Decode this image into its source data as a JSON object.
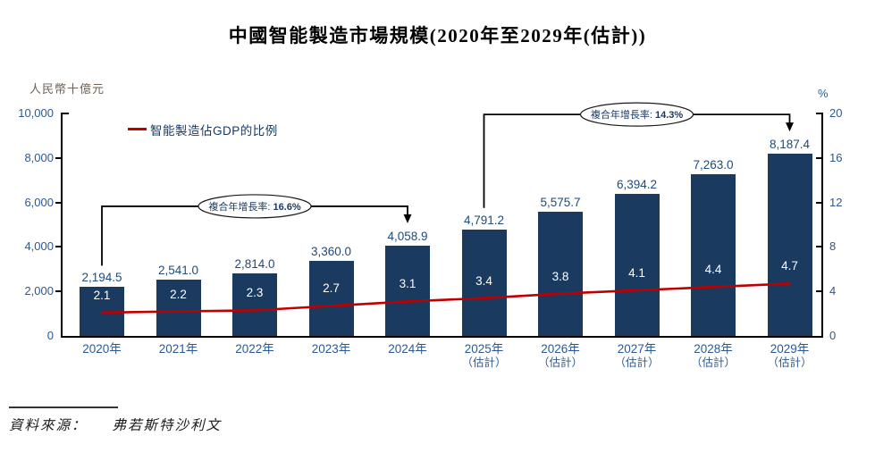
{
  "title": "中國智能製造市場規模(2020年至2029年(估計))",
  "left_axis": {
    "unit": "人民幣十億元",
    "ticks": [
      "10,000",
      "8,000",
      "6,000",
      "4,000",
      "2,000",
      "0"
    ]
  },
  "right_axis": {
    "unit": "%",
    "ticks": [
      "20",
      "16",
      "12",
      "8",
      "4",
      "0"
    ]
  },
  "legend": {
    "line_label": "智能製造佔GDP的比例"
  },
  "annotations": [
    {
      "label": "複合年增長率:",
      "value": "16.6%",
      "from": 0,
      "to": 4
    },
    {
      "label": "複合年增長率:",
      "value": "14.3%",
      "from": 5,
      "to": 9
    }
  ],
  "source": {
    "label": "資料來源：",
    "value": "弗若斯特沙利文"
  },
  "colors": {
    "bar": "#1B3A60",
    "line": "#C00000",
    "axis_line": "#000000",
    "tick_text": "#2C5990",
    "value_text": "#1F4B78",
    "legend_text": "#17375E",
    "annotation_text": "#17375E",
    "unit_left_text": "#6E6054"
  },
  "chart_data": {
    "type": "bar",
    "categories": [
      "2020年",
      "2021年",
      "2022年",
      "2023年",
      "2024年",
      "2025年",
      "2026年",
      "2027年",
      "2028年",
      "2029年"
    ],
    "category_suffixes": [
      "",
      "",
      "",
      "",
      "",
      "（估計）",
      "（估計）",
      "（估計）",
      "（估計）",
      "（估計）"
    ],
    "series": [
      {
        "name": "智能製造市場規模",
        "type": "bar",
        "axis": "left",
        "values": [
          2194.5,
          2541.0,
          2814.0,
          3360.0,
          4058.9,
          4791.2,
          5575.7,
          6394.2,
          7263.0,
          8187.4
        ],
        "labels": [
          "2,194.5",
          "2,541.0",
          "2,814.0",
          "3,360.0",
          "4,058.9",
          "4,791.2",
          "5,575.7",
          "6,394.2",
          "7,263.0",
          "8,187.4"
        ]
      },
      {
        "name": "智能製造佔GDP的比例",
        "type": "line",
        "axis": "right",
        "values": [
          2.1,
          2.2,
          2.3,
          2.7,
          3.1,
          3.4,
          3.8,
          4.1,
          4.4,
          4.7
        ],
        "labels": [
          "2.1",
          "2.2",
          "2.3",
          "2.7",
          "3.1",
          "3.4",
          "3.8",
          "4.1",
          "4.4",
          "4.7"
        ]
      }
    ],
    "left_ylim": [
      0,
      10000
    ],
    "right_ylim": [
      0,
      20
    ],
    "legend_position": "top-left-inside",
    "grid": false
  }
}
